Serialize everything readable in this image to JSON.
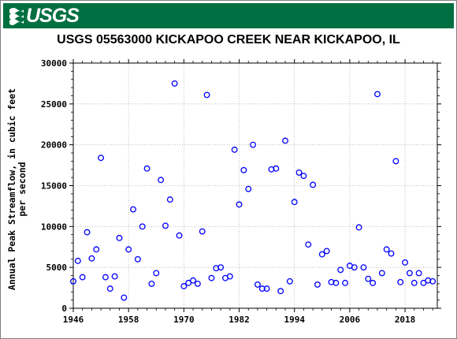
{
  "header": {
    "logo_text": "USGS",
    "brand_color": "#006F41"
  },
  "chart_data": {
    "type": "scatter",
    "title": "USGS 05563000 KICKAPOO CREEK NEAR KICKAPOO, IL",
    "xlabel": "",
    "ylabel_lines": [
      "Annual Peak Streamflow, in cubic feet",
      "per second"
    ],
    "xlim": [
      1946,
      2025
    ],
    "ylim": [
      0,
      30000
    ],
    "xticks": [
      1946,
      1958,
      1970,
      1982,
      1994,
      2006,
      2018
    ],
    "yticks": [
      0,
      5000,
      10000,
      15000,
      20000,
      25000,
      30000
    ],
    "grid": true,
    "marker_color": "#0000FF",
    "series": [
      {
        "x": [
          1946,
          1947,
          1948,
          1949,
          1950,
          1951,
          1952,
          1953,
          1954,
          1955,
          1956,
          1957,
          1958,
          1959,
          1960,
          1961,
          1962,
          1963,
          1964,
          1965,
          1966,
          1967,
          1968,
          1969,
          1970,
          1971,
          1972,
          1973,
          1974,
          1975,
          1976,
          1977,
          1978,
          1979,
          1980,
          1981,
          1982,
          1983,
          1984,
          1985,
          1986,
          1987,
          1988,
          1989,
          1990,
          1991,
          1992,
          1993,
          1994,
          1995,
          1996,
          1997,
          1998,
          1999,
          2000,
          2001,
          2002,
          2003,
          2004,
          2005,
          2006,
          2007,
          2008,
          2009,
          2010,
          2011,
          2012,
          2013,
          2014,
          2015,
          2016,
          2017,
          2018,
          2019,
          2020,
          2021,
          2022,
          2023,
          2024
        ],
        "y": [
          3300,
          5800,
          3800,
          9300,
          6100,
          7200,
          18400,
          3800,
          2400,
          3900,
          8600,
          1300,
          7200,
          12100,
          6000,
          10000,
          17100,
          3000,
          4300,
          15700,
          10100,
          13300,
          27500,
          8900,
          2700,
          3100,
          3400,
          3000,
          9400,
          26100,
          3700,
          4900,
          5000,
          3700,
          3900,
          19400,
          12700,
          16900,
          14600,
          20000,
          2900,
          2400,
          2400,
          17000,
          17100,
          2100,
          20500,
          3300,
          13000,
          16600,
          16200,
          7800,
          15100,
          2900,
          6600,
          7000,
          3200,
          3100,
          4700,
          3100,
          5200,
          5000,
          9900,
          5000,
          3600,
          3100,
          26200,
          4300,
          7200,
          6700,
          18000,
          3200,
          5600,
          4300,
          3100,
          4300,
          3100,
          3400,
          3300
        ]
      }
    ]
  }
}
